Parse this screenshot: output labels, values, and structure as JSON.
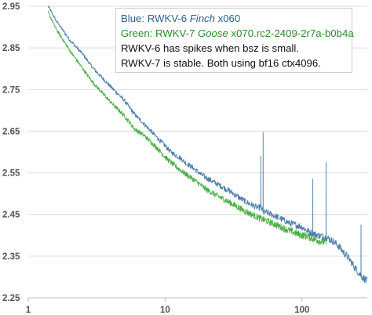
{
  "chart_data": {
    "type": "line",
    "x_scale": "log",
    "xlim": [
      1,
      300
    ],
    "ylim": [
      2.25,
      2.95
    ],
    "y_ticks": [
      "2.95",
      "2.85",
      "2.75",
      "2.65",
      "2.55",
      "2.45",
      "2.35",
      "2.25"
    ],
    "x_ticks": [
      "1",
      "10",
      "100"
    ],
    "grid": "horizontal",
    "series": [
      {
        "name": "Blue",
        "color": "#4a7ca8",
        "x": [
          1.4,
          1.6,
          2,
          2.5,
          3,
          4,
          5,
          6,
          7,
          8,
          9,
          10,
          11,
          12,
          13,
          14,
          16,
          18,
          20,
          25,
          30,
          35,
          40,
          45,
          48,
          50,
          52,
          55,
          60,
          70,
          80,
          90,
          100,
          110,
          120,
          130,
          140,
          150,
          160,
          170,
          180,
          190,
          200,
          220,
          240,
          260,
          280,
          300
        ],
        "y": [
          2.95,
          2.915,
          2.87,
          2.835,
          2.8,
          2.757,
          2.725,
          2.69,
          2.668,
          2.648,
          2.63,
          2.615,
          2.6,
          2.592,
          2.585,
          2.575,
          2.562,
          2.548,
          2.538,
          2.52,
          2.505,
          2.49,
          2.478,
          2.47,
          2.465,
          2.47,
          2.455,
          2.455,
          2.45,
          2.44,
          2.43,
          2.425,
          2.42,
          2.41,
          2.405,
          2.4,
          2.398,
          2.395,
          2.39,
          2.385,
          2.378,
          2.37,
          2.36,
          2.345,
          2.325,
          2.31,
          2.298,
          2.29
        ],
        "spikes": [
          {
            "x": 50,
            "y": 2.59
          },
          {
            "x": 52,
            "y": 2.647
          },
          {
            "x": 120,
            "y": 2.535
          },
          {
            "x": 150,
            "y": 2.575
          },
          {
            "x": 270,
            "y": 2.425
          }
        ]
      },
      {
        "name": "Green",
        "color": "#4caf45",
        "x": [
          1.4,
          1.6,
          2,
          2.5,
          3,
          4,
          5,
          6,
          7,
          8,
          9,
          10,
          11,
          12,
          14,
          16,
          18,
          20,
          25,
          30,
          35,
          40,
          50,
          60,
          70,
          80,
          90,
          100,
          110,
          120,
          130,
          140,
          150
        ],
        "y": [
          2.935,
          2.895,
          2.845,
          2.8,
          2.765,
          2.72,
          2.688,
          2.655,
          2.64,
          2.622,
          2.605,
          2.588,
          2.575,
          2.565,
          2.548,
          2.535,
          2.522,
          2.51,
          2.492,
          2.478,
          2.465,
          2.455,
          2.44,
          2.43,
          2.42,
          2.412,
          2.405,
          2.4,
          2.398,
          2.392,
          2.388,
          2.385,
          2.382
        ]
      }
    ]
  },
  "legend": {
    "blue_prefix": "Blue: RWKV-6 ",
    "blue_italic": "Finch",
    "blue_suffix": " x060",
    "green_prefix": "Green: RWKV-7 ",
    "green_italic": "Goose",
    "green_suffix": " x070.rc2-2409-2r7a-b0b4a",
    "note_line1": "RWKV-6 has spikes when bsz is small.",
    "note_line2": "RWKV-7 is stable. Both using bf16 ctx4096.",
    "blue_color": "#2f5f8a",
    "green_color": "#2e8b2e",
    "note_color": "#111111"
  }
}
